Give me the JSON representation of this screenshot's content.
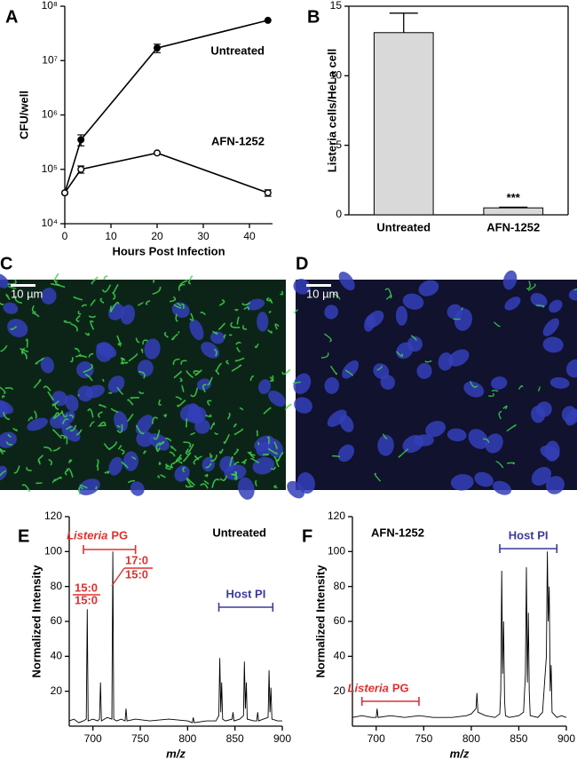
{
  "chart_data": [
    {
      "type": "line",
      "label": "A",
      "y_scale": "log",
      "x": [
        0,
        3.5,
        20,
        44
      ],
      "series": [
        {
          "name": "Untreated",
          "color": "#000000",
          "marker": "filled",
          "values": [
            37000,
            350000,
            17000000,
            55000000
          ],
          "errors": [
            0,
            80000,
            3000000,
            0
          ]
        },
        {
          "name": "AFN-1252",
          "color": "#000000",
          "marker": "open",
          "values": [
            37000,
            100000,
            200000,
            37000
          ],
          "errors": [
            0,
            15000,
            0,
            5000
          ]
        }
      ],
      "xlim": [
        0,
        45
      ],
      "xticks": [
        0,
        10,
        20,
        30,
        40
      ],
      "ylim": [
        10000,
        100000000
      ],
      "yticks": [
        {
          "value": 10000,
          "label": "10⁴"
        },
        {
          "value": 100000,
          "label": "10⁵"
        },
        {
          "value": 1000000,
          "label": "10⁶"
        },
        {
          "value": 10000000,
          "label": "10⁷"
        },
        {
          "value": 100000000,
          "label": "10⁸"
        }
      ],
      "xlabel": "Hours Post Infection",
      "ylabel": "CFU/well"
    },
    {
      "type": "bar",
      "label": "B",
      "categories": [
        "Untreated",
        "AFN-1252"
      ],
      "values": [
        13.1,
        0.5
      ],
      "errors": [
        1.4,
        0.05
      ],
      "color": "#d9d9d9",
      "annotations": [
        "***"
      ],
      "ylim": [
        0,
        15
      ],
      "yticks": [
        0,
        5,
        10,
        15
      ],
      "ylabel": "Listeria cells/HeLa cell"
    },
    {
      "type": "line",
      "label": "E",
      "x": [
        675,
        680,
        685,
        690,
        693,
        694,
        695,
        700,
        705,
        707,
        708,
        709,
        715,
        720,
        721,
        722,
        725,
        730,
        734,
        735,
        736,
        745,
        760,
        780,
        800,
        805,
        806,
        807,
        820,
        830,
        833,
        834,
        835,
        836,
        837,
        840,
        847,
        848,
        849,
        855,
        859,
        860,
        861,
        862,
        863,
        870,
        873,
        874,
        875,
        880,
        885,
        886,
        887,
        888,
        889,
        895,
        900
      ],
      "values": [
        3,
        4,
        2,
        3,
        4,
        67,
        3,
        4,
        3,
        4,
        25,
        3,
        5,
        4,
        100,
        4,
        3,
        4,
        3,
        10,
        3,
        4,
        3,
        4,
        3,
        2,
        5,
        2,
        3,
        3,
        6,
        39,
        8,
        25,
        4,
        3,
        4,
        8,
        3,
        4,
        6,
        37,
        10,
        25,
        4,
        3,
        3,
        8,
        3,
        4,
        5,
        32,
        8,
        22,
        4,
        3,
        3
      ],
      "color": "#000000",
      "annotations": [
        "Untreated"
      ],
      "brackets": [
        {
          "italic": "Listeria",
          "text": "PG",
          "range": [
            690,
            745
          ],
          "color": "#e03030"
        },
        {
          "text": "Host PI",
          "range": [
            833,
            890
          ],
          "color": "#3a3a9a"
        }
      ],
      "peak_labels": [
        [
          "15:0",
          "15:0"
        ],
        [
          "17:0",
          "15:0"
        ]
      ],
      "xlim": [
        675,
        900
      ],
      "xticks": [
        700,
        750,
        800,
        850,
        900
      ],
      "ylim": [
        0,
        120
      ],
      "yticks": [
        20,
        40,
        60,
        80,
        100,
        120
      ],
      "xlabel": "m/z",
      "ylabel": "Normalized Intensity"
    },
    {
      "type": "line",
      "label": "F",
      "x": [
        675,
        685,
        695,
        700,
        701,
        702,
        715,
        730,
        745,
        760,
        780,
        795,
        800,
        805,
        806,
        807,
        815,
        825,
        830,
        831,
        832,
        833,
        834,
        835,
        836,
        840,
        850,
        855,
        857,
        858,
        859,
        860,
        861,
        862,
        870,
        875,
        879,
        880,
        881,
        882,
        883,
        884,
        885,
        890,
        895,
        900
      ],
      "values": [
        5,
        6,
        5,
        5,
        10,
        5,
        6,
        5,
        6,
        5,
        5,
        6,
        7,
        10,
        19,
        8,
        6,
        5,
        7,
        20,
        89,
        30,
        60,
        15,
        6,
        5,
        6,
        8,
        30,
        91,
        25,
        65,
        20,
        6,
        5,
        8,
        40,
        100,
        60,
        80,
        20,
        35,
        8,
        5,
        6,
        5
      ],
      "color": "#000000",
      "annotations": [
        "AFN-1252"
      ],
      "brackets": [
        {
          "text": "Host PI",
          "range": [
            830,
            890
          ],
          "color": "#3a3a9a"
        },
        {
          "italic": "Listeria",
          "text": "PG",
          "range": [
            685,
            745
          ],
          "color": "#e03030"
        }
      ],
      "xlim": [
        675,
        900
      ],
      "xticks": [
        700,
        750,
        800,
        850,
        900
      ],
      "ylim": [
        0,
        120
      ],
      "yticks": [
        20,
        40,
        60,
        80,
        100,
        120
      ],
      "xlabel": "m/z",
      "ylabel": "Normalized Intensity"
    }
  ],
  "images": [
    {
      "label": "C",
      "scale_bar": "10 µm"
    },
    {
      "label": "D",
      "scale_bar": "10 µm"
    }
  ]
}
